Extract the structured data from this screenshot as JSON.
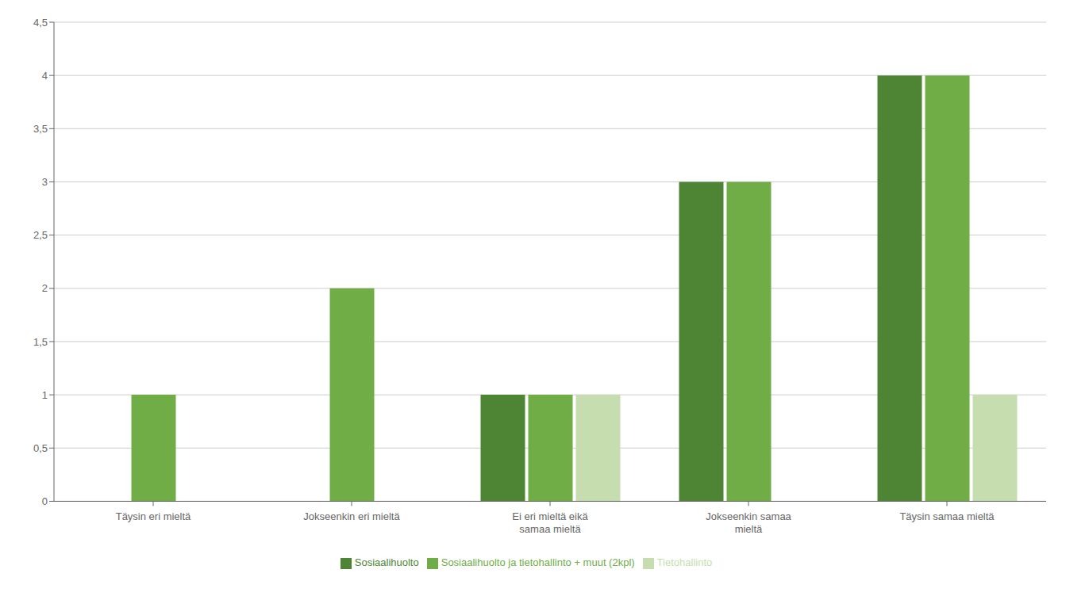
{
  "chart_data": {
    "type": "bar",
    "categories": [
      "Täysin eri mieltä",
      "Jokseenkin eri mieltä",
      "Ei eri mieltä eikä\nsamaa mieltä",
      "Jokseenkin samaa\nmieltä",
      "Täysin samaa mieltä"
    ],
    "series": [
      {
        "name": "Sosiaalihuolto",
        "color": "#4E8535",
        "values": [
          0,
          0,
          1,
          3,
          4
        ]
      },
      {
        "name": "Sosiaalihuolto ja tietohallinto + muut (2kpl)",
        "color": "#70AD47",
        "values": [
          1,
          2,
          1,
          3,
          4
        ]
      },
      {
        "name": "Tietohallinto",
        "color": "#C6DEAF",
        "values": [
          0,
          0,
          1,
          0,
          1
        ]
      }
    ],
    "ylim": [
      0,
      4.5
    ],
    "yticks": [
      0,
      {
        "value": 0.5,
        "label": "0,5"
      },
      1,
      {
        "value": 1.5,
        "label": "1,5"
      },
      2,
      {
        "value": 2.5,
        "label": "2,5"
      },
      3,
      {
        "value": 3.5,
        "label": "3,5"
      },
      4,
      {
        "value": 4.5,
        "label": "4,5"
      }
    ],
    "grid": true,
    "legend": "bottom"
  }
}
